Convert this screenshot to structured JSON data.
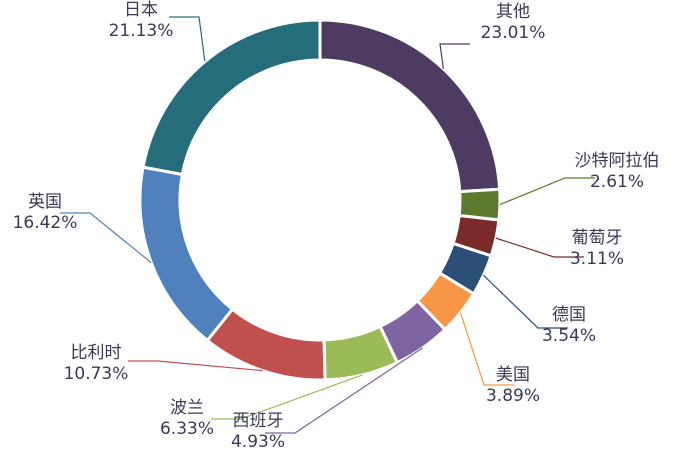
{
  "chart_data": {
    "type": "pie",
    "style": "donut",
    "title": "",
    "categories": [
      "其他",
      "沙特阿拉伯",
      "葡萄牙",
      "德国",
      "美国",
      "西班牙",
      "波兰",
      "比利时",
      "英国",
      "日本"
    ],
    "values": [
      23.01,
      2.61,
      3.11,
      3.54,
      3.89,
      4.93,
      6.33,
      10.73,
      16.42,
      21.13
    ],
    "value_labels": [
      "23.01%",
      "2.61%",
      "3.11%",
      "3.54%",
      "3.89%",
      "4.93%",
      "6.33%",
      "10.73%",
      "16.42%",
      "21.13%"
    ],
    "colors": [
      "#4d3b62",
      "#5e7a2e",
      "#7b2a2a",
      "#2c4f78",
      "#f79646",
      "#7f64a2",
      "#9bbb59",
      "#c0504d",
      "#4f81bd",
      "#256d7b"
    ],
    "legend": "none"
  }
}
